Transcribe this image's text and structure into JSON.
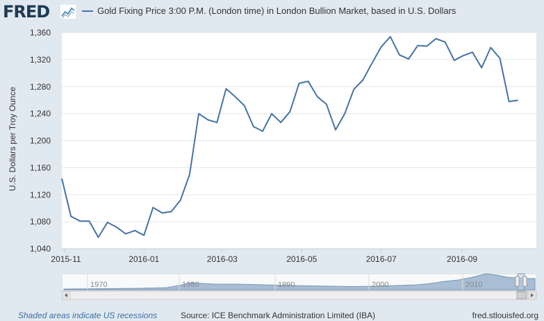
{
  "header": {
    "logo_text": "FRED",
    "logo_icon": "line-graph-icon",
    "legend_label": "Gold Fixing Price 3:00 P.M. (London time) in London Bullion Market, based in U.S. Dollars"
  },
  "colors": {
    "series": "#4572a7",
    "plot_bg": "#ffffff",
    "page_bg": "#e1e9f0",
    "navigator_fill": "#a9bed4"
  },
  "chart_data": {
    "type": "line",
    "title": "",
    "xlabel": "",
    "ylabel": "U.S. Dollars per Troy Ounce",
    "ylim": [
      1040,
      1360
    ],
    "yticks": [
      1040,
      1080,
      1120,
      1160,
      1200,
      1240,
      1280,
      1320,
      1360
    ],
    "ytick_labels": [
      "1,040",
      "1,080",
      "1,120",
      "1,160",
      "1,200",
      "1,240",
      "1,280",
      "1,320",
      "1,360"
    ],
    "xlim": [
      "2015-10-30",
      "2016-10-28"
    ],
    "xticks": [
      "2015-11-01",
      "2016-01-01",
      "2016-03-01",
      "2016-05-01",
      "2016-07-01",
      "2016-09-01"
    ],
    "xtick_labels": [
      "2015-11",
      "2016-01",
      "2016-03",
      "2016-05",
      "2016-07",
      "2016-09"
    ],
    "grid": "horizontal",
    "legend": "top",
    "series": [
      {
        "x": [
          "2015-10-30",
          "2015-11-06",
          "2015-11-13",
          "2015-11-20",
          "2015-11-27",
          "2015-12-04",
          "2015-12-11",
          "2015-12-18",
          "2015-12-25",
          "2016-01-01",
          "2016-01-08",
          "2016-01-15",
          "2016-01-22",
          "2016-01-29",
          "2016-02-05",
          "2016-02-12",
          "2016-02-19",
          "2016-02-26",
          "2016-03-04",
          "2016-03-11",
          "2016-03-18",
          "2016-03-25",
          "2016-04-01",
          "2016-04-08",
          "2016-04-15",
          "2016-04-22",
          "2016-04-29",
          "2016-05-06",
          "2016-05-13",
          "2016-05-20",
          "2016-05-27",
          "2016-06-03",
          "2016-06-10",
          "2016-06-17",
          "2016-06-24",
          "2016-07-01",
          "2016-07-08",
          "2016-07-15",
          "2016-07-22",
          "2016-07-29",
          "2016-08-05",
          "2016-08-12",
          "2016-08-19",
          "2016-08-26",
          "2016-09-02",
          "2016-09-09",
          "2016-09-16",
          "2016-09-23",
          "2016-09-30",
          "2016-10-07",
          "2016-10-14"
        ],
        "values": [
          1144,
          1088,
          1081,
          1081,
          1057,
          1079,
          1072,
          1062,
          1067,
          1060,
          1101,
          1093,
          1095,
          1112,
          1150,
          1240,
          1231,
          1227,
          1277,
          1265,
          1252,
          1221,
          1214,
          1240,
          1227,
          1243,
          1285,
          1288,
          1265,
          1254,
          1216,
          1240,
          1276,
          1290,
          1315,
          1339,
          1354,
          1327,
          1321,
          1341,
          1340,
          1351,
          1346,
          1319,
          1326,
          1331,
          1308,
          1338,
          1322,
          1258,
          1260
        ]
      }
    ],
    "navigator": {
      "type": "area",
      "tick_labels": [
        "1970",
        "1980",
        "1990",
        "2000",
        "2010"
      ]
    }
  },
  "footer": {
    "recession_note": "Shaded areas indicate US recessions",
    "source": "Source: ICE Benchmark Administration Limited (IBA)",
    "site": "fred.stlouisfed.org"
  }
}
